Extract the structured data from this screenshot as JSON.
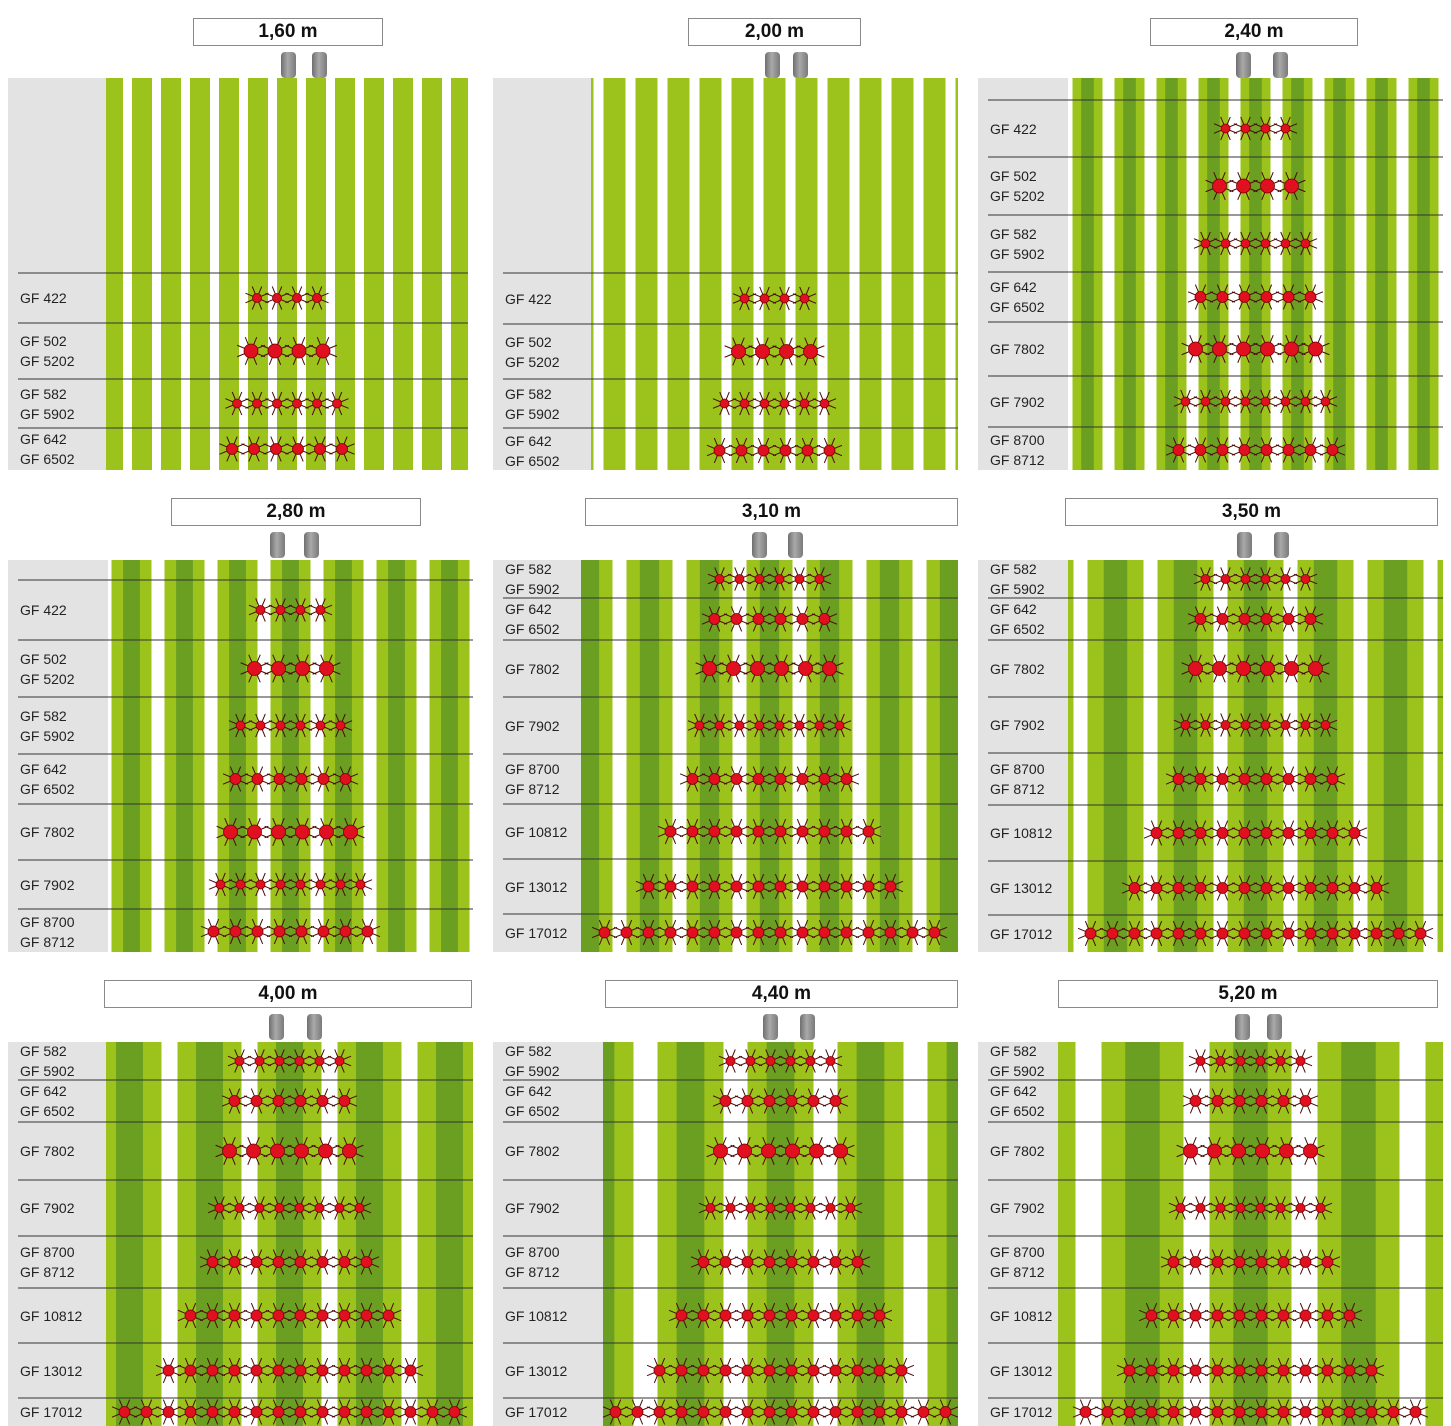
{
  "colors": {
    "light_green": "#9cc31b",
    "dark_green": "#6a9f21",
    "label_bg": "#e3e3e3",
    "rotor_red": "#e01020",
    "rotor_spoke": "#4a0a0a",
    "line": "#333333"
  },
  "panels": [
    {
      "title": "1,60 m",
      "rows": [
        {
          "label": "GF 422",
          "rotors": 4,
          "size": "s"
        },
        {
          "label": "GF 502\nGF 5202",
          "rotors": 4,
          "size": "l"
        },
        {
          "label": "GF 582\nGF 5902",
          "rotors": 6,
          "size": "s"
        },
        {
          "label": "GF 642\nGF 6502",
          "rotors": 6,
          "size": "m"
        }
      ]
    },
    {
      "title": "2,00 m",
      "rows": [
        {
          "label": "GF 422",
          "rotors": 4,
          "size": "s"
        },
        {
          "label": "GF 502\nGF 5202",
          "rotors": 4,
          "size": "l"
        },
        {
          "label": "GF 582\nGF 5902",
          "rotors": 6,
          "size": "s"
        },
        {
          "label": "GF 642\nGF 6502",
          "rotors": 6,
          "size": "m"
        }
      ]
    },
    {
      "title": "2,40 m",
      "rows": [
        {
          "label": "GF 422",
          "rotors": 4,
          "size": "s"
        },
        {
          "label": "GF 502\nGF 5202",
          "rotors": 4,
          "size": "l"
        },
        {
          "label": "GF 582\nGF 5902",
          "rotors": 6,
          "size": "s"
        },
        {
          "label": "GF 642\nGF 6502",
          "rotors": 6,
          "size": "m"
        },
        {
          "label": "GF 7802",
          "rotors": 6,
          "size": "l"
        },
        {
          "label": "GF 7902",
          "rotors": 8,
          "size": "s"
        },
        {
          "label": "GF 8700\nGF 8712",
          "rotors": 8,
          "size": "m"
        }
      ]
    },
    {
      "title": "2,80 m",
      "rows": [
        {
          "label": "GF 422",
          "rotors": 4,
          "size": "s"
        },
        {
          "label": "GF 502\nGF 5202",
          "rotors": 4,
          "size": "l"
        },
        {
          "label": "GF 582\nGF 5902",
          "rotors": 6,
          "size": "s"
        },
        {
          "label": "GF 642\nGF 6502",
          "rotors": 6,
          "size": "m"
        },
        {
          "label": "GF 7802",
          "rotors": 6,
          "size": "l"
        },
        {
          "label": "GF 7902",
          "rotors": 8,
          "size": "s"
        },
        {
          "label": "GF 8700\nGF 8712",
          "rotors": 8,
          "size": "m"
        }
      ]
    },
    {
      "title": "3,10 m",
      "rows": [
        {
          "label": "GF 582\nGF 5902",
          "rotors": 6,
          "size": "s"
        },
        {
          "label": "GF 642\nGF 6502",
          "rotors": 6,
          "size": "m"
        },
        {
          "label": "GF 7802",
          "rotors": 6,
          "size": "l"
        },
        {
          "label": "GF 7902",
          "rotors": 8,
          "size": "s"
        },
        {
          "label": "GF 8700\nGF 8712",
          "rotors": 8,
          "size": "m"
        },
        {
          "label": "GF 10812",
          "rotors": 10,
          "size": "m"
        },
        {
          "label": "GF 13012",
          "rotors": 12,
          "size": "m"
        },
        {
          "label": "GF 17012",
          "rotors": 16,
          "size": "m"
        }
      ]
    },
    {
      "title": "3,50 m",
      "rows": [
        {
          "label": "GF 582\nGF 5902",
          "rotors": 6,
          "size": "s"
        },
        {
          "label": "GF 642\nGF 6502",
          "rotors": 6,
          "size": "m"
        },
        {
          "label": "GF 7802",
          "rotors": 6,
          "size": "l"
        },
        {
          "label": "GF 7902",
          "rotors": 8,
          "size": "s"
        },
        {
          "label": "GF 8700\nGF 8712",
          "rotors": 8,
          "size": "m"
        },
        {
          "label": "GF 10812",
          "rotors": 10,
          "size": "m"
        },
        {
          "label": "GF 13012",
          "rotors": 12,
          "size": "m"
        },
        {
          "label": "GF 17012",
          "rotors": 16,
          "size": "m"
        }
      ]
    },
    {
      "title": "4,00 m",
      "rows": [
        {
          "label": "GF 582\nGF 5902",
          "rotors": 6,
          "size": "s"
        },
        {
          "label": "GF 642\nGF 6502",
          "rotors": 6,
          "size": "m"
        },
        {
          "label": "GF 7802",
          "rotors": 6,
          "size": "l"
        },
        {
          "label": "GF 7902",
          "rotors": 8,
          "size": "s"
        },
        {
          "label": "GF 8700\nGF 8712",
          "rotors": 8,
          "size": "m"
        },
        {
          "label": "GF 10812",
          "rotors": 10,
          "size": "m"
        },
        {
          "label": "GF 13012",
          "rotors": 12,
          "size": "m"
        },
        {
          "label": "GF 17012",
          "rotors": 16,
          "size": "m"
        }
      ]
    },
    {
      "title": "4,40 m",
      "rows": [
        {
          "label": "GF 582\nGF 5902",
          "rotors": 6,
          "size": "s"
        },
        {
          "label": "GF 642\nGF 6502",
          "rotors": 6,
          "size": "m"
        },
        {
          "label": "GF 7802",
          "rotors": 6,
          "size": "l"
        },
        {
          "label": "GF 7902",
          "rotors": 8,
          "size": "s"
        },
        {
          "label": "GF 8700\nGF 8712",
          "rotors": 8,
          "size": "m"
        },
        {
          "label": "GF 10812",
          "rotors": 10,
          "size": "m"
        },
        {
          "label": "GF 13012",
          "rotors": 12,
          "size": "m"
        },
        {
          "label": "GF 17012",
          "rotors": 16,
          "size": "m"
        }
      ]
    },
    {
      "title": "5,20 m",
      "rows": [
        {
          "label": "GF 582\nGF 5902",
          "rotors": 6,
          "size": "s"
        },
        {
          "label": "GF 642\nGF 6502",
          "rotors": 6,
          "size": "m"
        },
        {
          "label": "GF 7802",
          "rotors": 6,
          "size": "l"
        },
        {
          "label": "GF 7902",
          "rotors": 8,
          "size": "s"
        },
        {
          "label": "GF 8700\nGF 8712",
          "rotors": 8,
          "size": "m"
        },
        {
          "label": "GF 10812",
          "rotors": 10,
          "size": "m"
        },
        {
          "label": "GF 13012",
          "rotors": 12,
          "size": "m"
        },
        {
          "label": "GF 17012",
          "rotors": 16,
          "size": "m"
        }
      ]
    }
  ]
}
